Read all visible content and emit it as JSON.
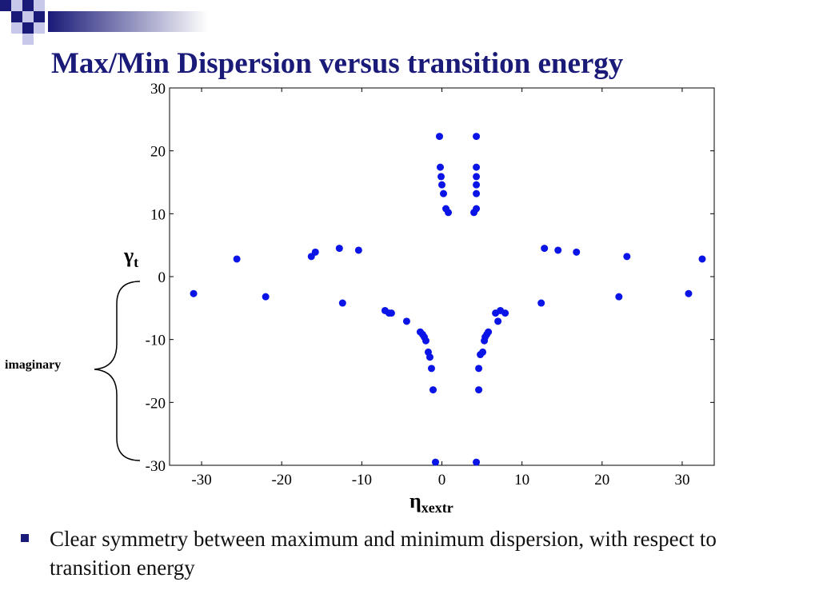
{
  "slide": {
    "title": "Max/Min Dispersion versus transition energy",
    "bullet": "Clear symmetry between maximum and minimum dispersion, with respect to transition energy",
    "brace_label": "imaginary",
    "colors": {
      "title": "#1a1a78",
      "points": "#0a14e6",
      "bullet": "#1a1a78",
      "accent_light": "#a0a0d8"
    }
  },
  "chart_data": {
    "type": "scatter",
    "title": "",
    "xlabel": "η",
    "xlabel_sub": "xextr",
    "ylabel": "γ",
    "ylabel_sub": "t",
    "xlim": [
      -34,
      34
    ],
    "ylim": [
      -30,
      30
    ],
    "xticks": [
      -30,
      -20,
      -10,
      0,
      10,
      20,
      30
    ],
    "yticks": [
      30,
      20,
      10,
      0,
      -10,
      -20,
      -30
    ],
    "grid": false,
    "series": [
      {
        "points": [
          [
            -31,
            -2.7
          ],
          [
            -25.6,
            2.8
          ],
          [
            -22,
            -3.2
          ],
          [
            -16.3,
            3.2
          ],
          [
            -15.8,
            3.9
          ],
          [
            -12.8,
            4.5
          ],
          [
            -12.4,
            -4.2
          ],
          [
            -10.4,
            4.2
          ],
          [
            -7.1,
            -5.4
          ],
          [
            -6.6,
            -5.8
          ],
          [
            -6.3,
            -5.8
          ],
          [
            -4.4,
            -7.1
          ],
          [
            -2.7,
            -8.8
          ],
          [
            -2.4,
            -9.2
          ],
          [
            -2.2,
            -9.6
          ],
          [
            -2,
            -10.2
          ],
          [
            -1.7,
            -12
          ],
          [
            -1.5,
            -12.8
          ],
          [
            -1.3,
            -14.6
          ],
          [
            -1.1,
            -18
          ],
          [
            -0.8,
            -29.5
          ],
          [
            -0.3,
            22.3
          ],
          [
            -0.2,
            17.4
          ],
          [
            -0.1,
            15.9
          ],
          [
            0,
            14.6
          ],
          [
            0.2,
            13.2
          ],
          [
            0.5,
            10.8
          ],
          [
            0.8,
            10.2
          ],
          [
            4,
            10.2
          ],
          [
            4.3,
            10.8
          ],
          [
            4.3,
            13.2
          ],
          [
            4.3,
            14.6
          ],
          [
            4.3,
            15.9
          ],
          [
            4.3,
            17.4
          ],
          [
            4.3,
            22.3
          ],
          [
            4.3,
            -29.5
          ],
          [
            4.6,
            -18
          ],
          [
            4.6,
            -14.6
          ],
          [
            4.8,
            -12.4
          ],
          [
            5.1,
            -12
          ],
          [
            5.3,
            -10.2
          ],
          [
            5.4,
            -9.6
          ],
          [
            5.6,
            -9.2
          ],
          [
            5.8,
            -8.8
          ],
          [
            6.7,
            -5.8
          ],
          [
            7,
            -7.1
          ],
          [
            7.3,
            -5.4
          ],
          [
            7.9,
            -5.8
          ],
          [
            12.4,
            -4.2
          ],
          [
            12.8,
            4.5
          ],
          [
            14.5,
            4.2
          ],
          [
            16.8,
            3.9
          ],
          [
            22.1,
            -3.2
          ],
          [
            23.1,
            3.2
          ],
          [
            30.8,
            -2.7
          ],
          [
            32.5,
            2.8
          ]
        ]
      }
    ]
  }
}
